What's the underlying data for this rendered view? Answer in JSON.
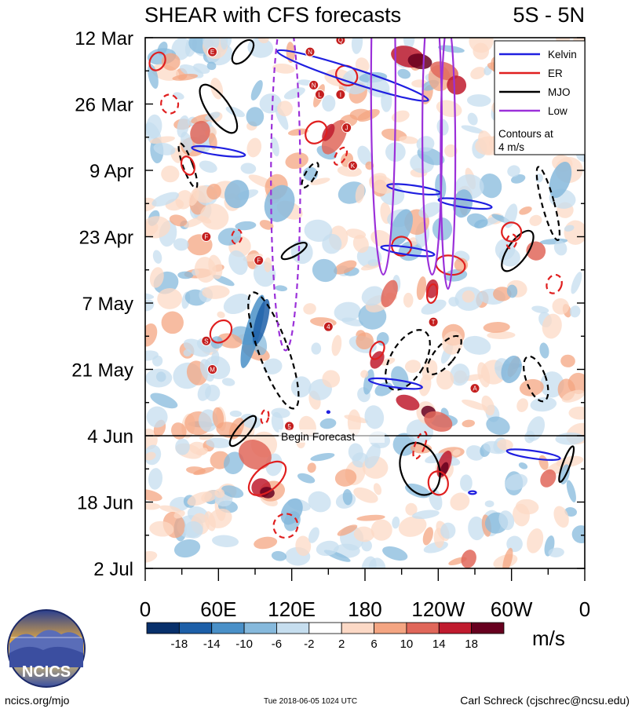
{
  "chart_data": {
    "type": "heatmap",
    "title": "SHEAR with CFS forecasts",
    "region_label": "5S - 5N",
    "y_ticks": [
      "12 Mar",
      "26 Mar",
      "9 Apr",
      "23 Apr",
      "7 May",
      "21 May",
      "4 Jun",
      "18 Jun",
      "2 Jul"
    ],
    "x_ticks": [
      "0",
      "60E",
      "120E",
      "180",
      "120W",
      "60W",
      "0"
    ],
    "x_range_deg_east": [
      0,
      360
    ],
    "y_range_days_from_start": [
      0,
      112
    ],
    "forecast_start": "4 Jun",
    "forecast_label": "Begin Forecast",
    "legend": {
      "position": "top-right",
      "entries": [
        {
          "name": "Kelvin",
          "color": "#1f1fe0"
        },
        {
          "name": "ER",
          "color": "#e01f1f"
        },
        {
          "name": "MJO",
          "color": "#000000"
        },
        {
          "name": "Low",
          "color": "#9b30d9"
        }
      ],
      "note_line1": "Contours at",
      "note_line2": "4 m/s"
    },
    "colorbar": {
      "unit": "m/s",
      "labels": [
        "-18",
        "-14",
        "-10",
        "-6",
        "-2",
        "2",
        "6",
        "10",
        "14",
        "18"
      ],
      "colors": [
        "#08306b",
        "#1d5fa8",
        "#4a90c8",
        "#86b9dc",
        "#c6deef",
        "#ffffff",
        "#fcd9c6",
        "#f4a582",
        "#e0675a",
        "#c01b2e",
        "#67001f"
      ]
    },
    "cyclone_labels": [
      "E",
      "Q",
      "N",
      "N",
      "L",
      "I",
      "J",
      "K",
      "F",
      "F",
      "S",
      "M",
      "4",
      "T",
      "A",
      "5"
    ]
  },
  "footer": {
    "logo_text": "NCICS",
    "website": "ncics.org/mjo",
    "timestamp": "Tue 2018-06-05 1024 UTC",
    "author": "Carl Schreck (cjschrec@ncsu.edu)"
  }
}
